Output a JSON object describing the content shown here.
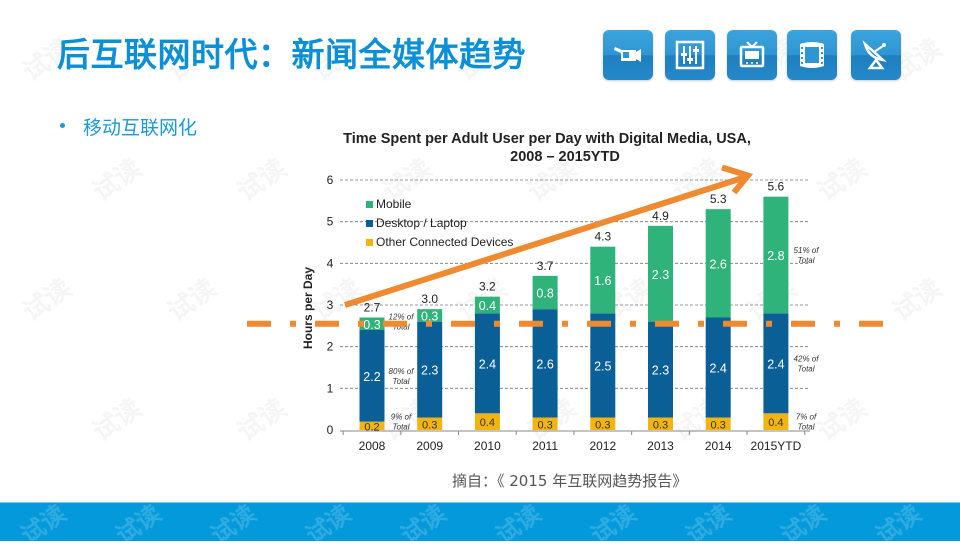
{
  "slide": {
    "title": "后互联网时代：新闻全媒体趋势",
    "bullet": "移动互联网化",
    "source": "摘自：《 2015 年互联网趋势报告》",
    "watermark": "试读",
    "icons": [
      "video-camera-icon",
      "equalizer-sliders-icon",
      "television-icon",
      "film-strip-icon",
      "satellite-dish-icon"
    ],
    "colors": {
      "title": "#0b8fd6",
      "footer": "#0399db",
      "arrow": "#f08a30"
    }
  },
  "chart_data": {
    "type": "bar",
    "stacked": true,
    "title_line1": "Time Spent per Adult User per Day with Digital Media, USA,",
    "title_line2": "2008 – 2015YTD",
    "xlabel": "",
    "ylabel": "Hours per Day",
    "ylim": [
      0,
      6
    ],
    "yticks": [
      "0",
      "1",
      "2",
      "3",
      "4",
      "5",
      "6"
    ],
    "grid": true,
    "legend_position": "top-left",
    "categories": [
      "2008",
      "2009",
      "2010",
      "2011",
      "2012",
      "2013",
      "2014",
      "2015YTD"
    ],
    "series": [
      {
        "name": "Other Connected Devices",
        "color": "#f2b50f",
        "values": [
          0.2,
          0.3,
          0.4,
          0.3,
          0.3,
          0.3,
          0.3,
          0.4
        ],
        "labels": [
          "0.2",
          "0.3",
          "0.4",
          "0.3",
          "0.3",
          "0.3",
          "0.3",
          "0.4"
        ]
      },
      {
        "name": "Desktop / Laptop",
        "color": "#0a5f97",
        "values": [
          2.2,
          2.3,
          2.4,
          2.6,
          2.5,
          2.3,
          2.4,
          2.4
        ],
        "labels": [
          "2.2",
          "2.3",
          "2.4",
          "2.6",
          "2.5",
          "2.3",
          "2.4",
          "2.4"
        ]
      },
      {
        "name": "Mobile",
        "color": "#2fb37a",
        "values": [
          0.3,
          0.3,
          0.4,
          0.8,
          1.6,
          2.3,
          2.6,
          2.8
        ],
        "labels": [
          "0.3",
          "0.3",
          "0.4",
          "0.8",
          "1.6",
          "2.3",
          "2.6",
          "2.8"
        ]
      }
    ],
    "legend_order": [
      "Mobile",
      "Desktop / Laptop",
      "Other Connected Devices"
    ],
    "totals": [
      "2.7",
      "3.0",
      "3.2",
      "3.7",
      "4.3",
      "4.9",
      "5.3",
      "5.6"
    ],
    "share_annotations_2008": [
      {
        "line1": "12% of",
        "line2": "Total",
        "at_value": 2.6
      },
      {
        "line1": "80% of",
        "line2": "Total",
        "at_value": 1.3
      },
      {
        "line1": "9% of",
        "line2": "Total",
        "at_value": 0.2
      }
    ],
    "share_annotations_2015": [
      {
        "line1": "51% of",
        "line2": "Total",
        "at_value": 4.2
      },
      {
        "line1": "42% of",
        "line2": "Total",
        "at_value": 1.6
      },
      {
        "line1": "7% of",
        "line2": "Total",
        "at_value": 0.2
      }
    ],
    "trend_arrow": {
      "from_value": 3.0,
      "to_value": 6.3,
      "color": "#f08a30"
    },
    "dash_dot_line": {
      "value": 2.55,
      "color": "#f08a30"
    }
  }
}
